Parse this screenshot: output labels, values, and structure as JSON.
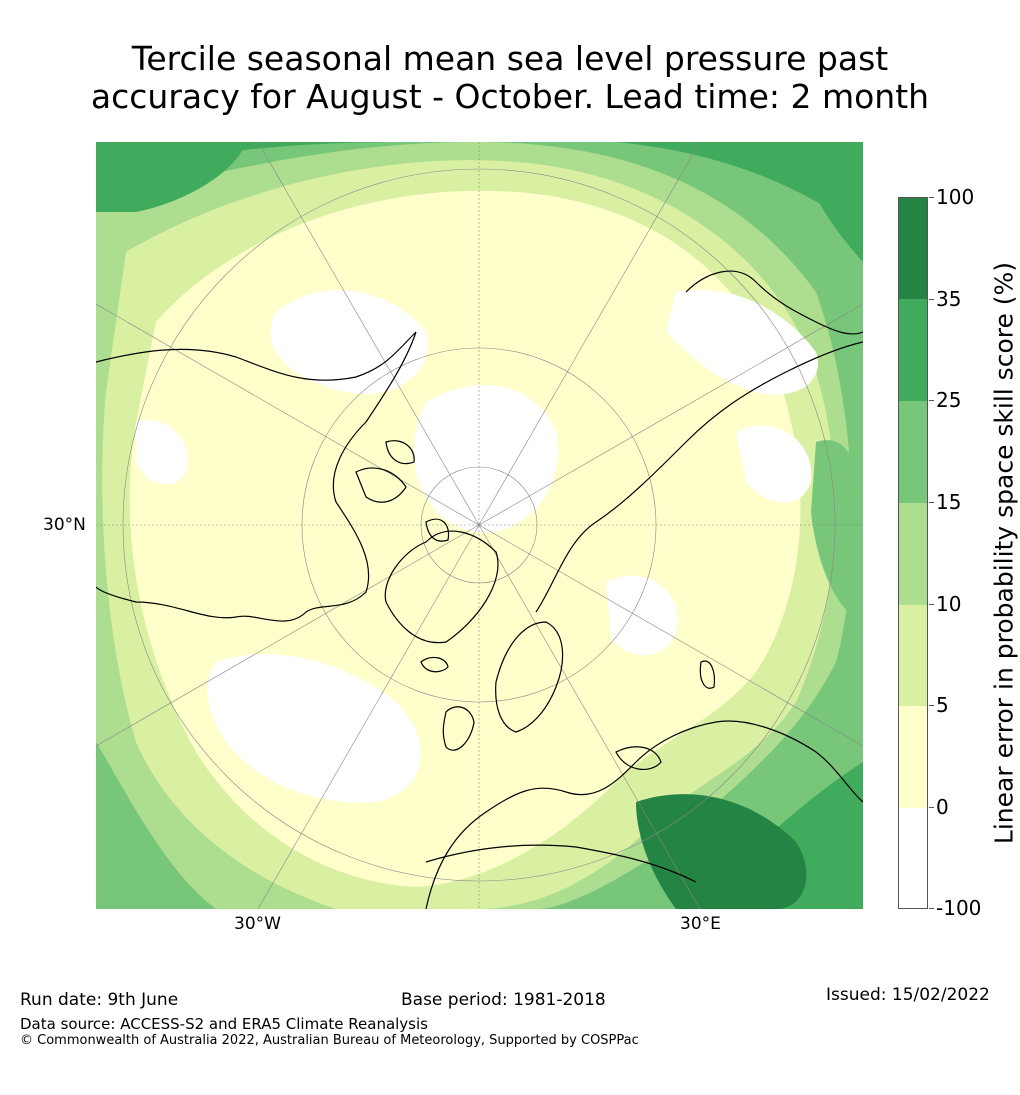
{
  "title": {
    "line1": "Tercile seasonal mean sea level pressure past",
    "line2": "accuracy for August - October. Lead time: 2 month"
  },
  "map": {
    "projection": "north-polar-stereographic",
    "graticule_labels": {
      "lat": "30°N",
      "lon_left": "30°W",
      "lon_right": "30°E"
    }
  },
  "colorbar": {
    "title": "Linear error in probability space skill score (%)",
    "ticks": [
      "100",
      "35",
      "25",
      "15",
      "10",
      "5",
      "0",
      "-100"
    ],
    "colors": [
      "#ffffff",
      "#ffffcc",
      "#d9f0a3",
      "#addd8e",
      "#78c679",
      "#41ab5d",
      "#238443"
    ]
  },
  "footer": {
    "run_date": "Run date: 9th June",
    "base_period": "Base period: 1981-2018",
    "issued": "Issued: 15/02/2022",
    "data_source": "Data source: ACCESS-S2 and ERA5 Climate Reanalysis",
    "copyright": "© Commonwealth of Australia 2022, Australian Bureau of Meteorology, Supported by COSPPac"
  }
}
